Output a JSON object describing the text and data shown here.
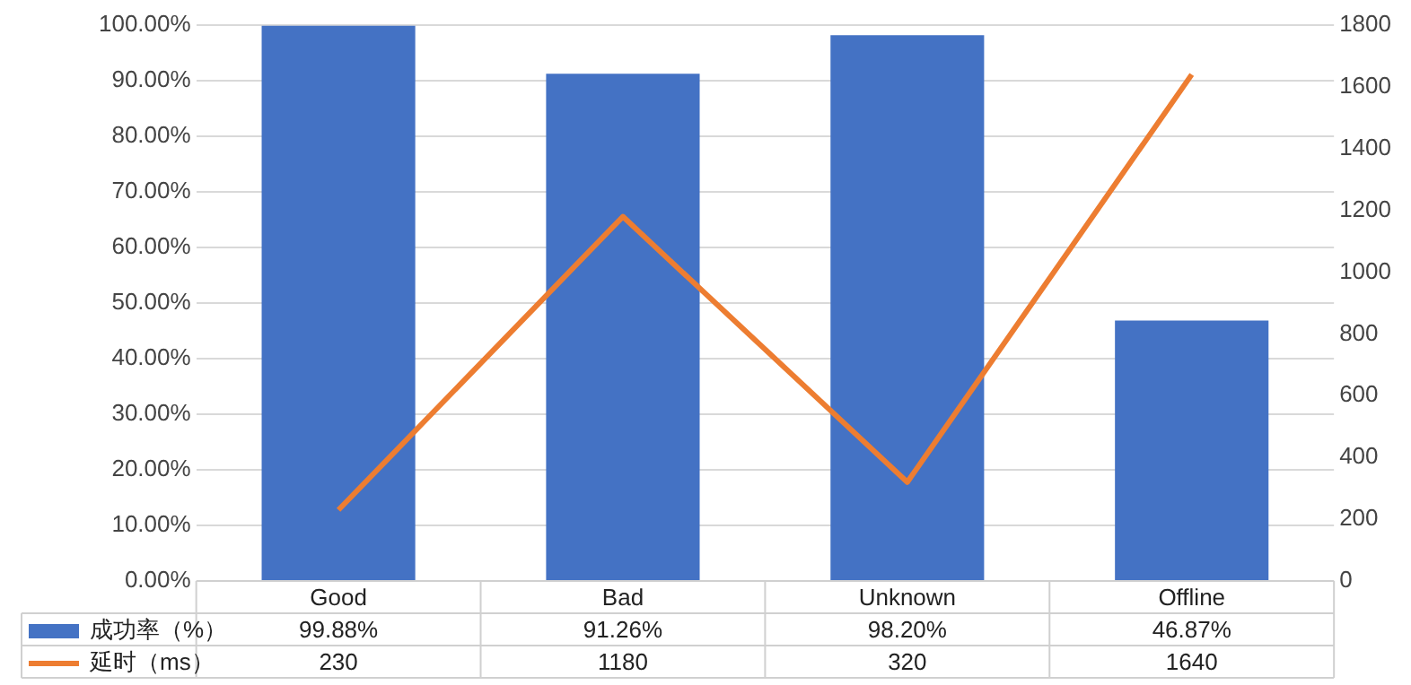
{
  "chart_data": {
    "type": "bar",
    "categories": [
      "Good",
      "Bad",
      "Unknown",
      "Offline"
    ],
    "series": [
      {
        "name": "成功率（%）",
        "color": "#4472c4",
        "values": [
          99.88,
          91.26,
          98.2,
          46.87
        ],
        "value_labels": [
          "99.88%",
          "91.26%",
          "98.20%",
          "46.87%"
        ]
      },
      {
        "name": "延时（ms）",
        "type": "line",
        "axis": "y2",
        "color": "#ed7d31",
        "values": [
          230,
          1180,
          320,
          1640
        ],
        "value_labels": [
          "230",
          "1180",
          "320",
          "1640"
        ]
      }
    ],
    "ylim": [
      0,
      100
    ],
    "yticks": [
      {
        "value": 0,
        "label": "0.00%"
      },
      {
        "value": 10,
        "label": "10.00%"
      },
      {
        "value": 20,
        "label": "20.00%"
      },
      {
        "value": 30,
        "label": "30.00%"
      },
      {
        "value": 40,
        "label": "40.00%"
      },
      {
        "value": 50,
        "label": "50.00%"
      },
      {
        "value": 60,
        "label": "60.00%"
      },
      {
        "value": 70,
        "label": "70.00%"
      },
      {
        "value": 80,
        "label": "80.00%"
      },
      {
        "value": 90,
        "label": "90.00%"
      },
      {
        "value": 100,
        "label": "100.00%"
      }
    ],
    "y2lim": [
      0,
      1800
    ],
    "y2ticks": [
      0,
      200,
      400,
      600,
      800,
      1000,
      1200,
      1400,
      1600,
      1800
    ],
    "grid": "y",
    "legend": "bottom",
    "marker": "none"
  }
}
